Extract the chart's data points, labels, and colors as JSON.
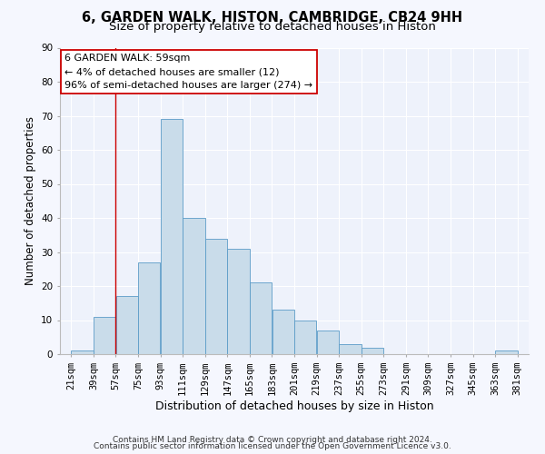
{
  "title": "6, GARDEN WALK, HISTON, CAMBRIDGE, CB24 9HH",
  "subtitle": "Size of property relative to detached houses in Histon",
  "xlabel": "Distribution of detached houses by size in Histon",
  "ylabel": "Number of detached properties",
  "bar_color": "#c9dcea",
  "bar_edge_color": "#5b9bc7",
  "background_color": "#eef2fb",
  "fig_background_color": "#f5f7fe",
  "grid_color": "#ffffff",
  "vline_color": "#cc0000",
  "vline_x": 57,
  "bin_edges": [
    21,
    39,
    57,
    75,
    93,
    111,
    129,
    147,
    165,
    183,
    201,
    219,
    237,
    255,
    273,
    291,
    309,
    327,
    345,
    363,
    381
  ],
  "bar_heights": [
    1,
    11,
    17,
    27,
    69,
    40,
    34,
    31,
    21,
    13,
    10,
    7,
    3,
    2,
    0,
    0,
    0,
    0,
    0,
    1
  ],
  "ylim": [
    0,
    90
  ],
  "yticks": [
    0,
    10,
    20,
    30,
    40,
    50,
    60,
    70,
    80,
    90
  ],
  "annotation_box_text": "6 GARDEN WALK: 59sqm\n← 4% of detached houses are smaller (12)\n96% of semi-detached houses are larger (274) →",
  "footer_line1": "Contains HM Land Registry data © Crown copyright and database right 2024.",
  "footer_line2": "Contains public sector information licensed under the Open Government Licence v3.0.",
  "title_fontsize": 10.5,
  "subtitle_fontsize": 9.5,
  "xlabel_fontsize": 9,
  "ylabel_fontsize": 8.5,
  "tick_fontsize": 7.5,
  "annotation_fontsize": 8,
  "footer_fontsize": 6.5
}
